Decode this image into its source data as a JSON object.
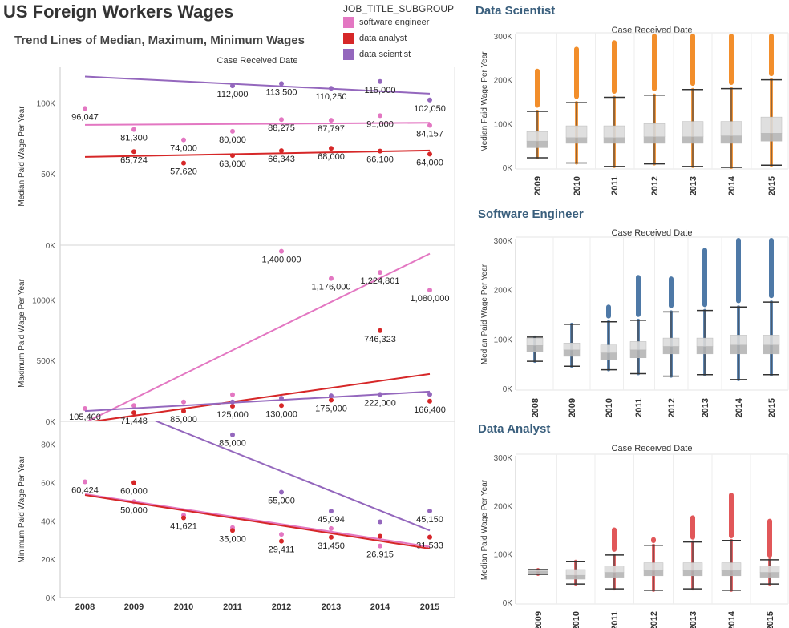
{
  "title": "US Foreign Workers Wages",
  "subtitle": "Trend Lines of Median, Maximum, Minimum Wages",
  "legend": {
    "title": "JOB_TITLE_SUBGROUP",
    "items": [
      {
        "label": "software engineer",
        "color": "#e377c2"
      },
      {
        "label": "data analyst",
        "color": "#d62728"
      },
      {
        "label": "data scientist",
        "color": "#9467bd"
      }
    ]
  },
  "chart_data": [
    {
      "type": "scatter",
      "title": "Trend Lines of Median, Maximum, Minimum Wages",
      "xlabel": "Case Received Date",
      "ylabel": "Median Paid Wage Per Year",
      "x": [
        2008,
        2009,
        2010,
        2011,
        2012,
        2013,
        2014,
        2015
      ],
      "xticks": [
        "2008",
        "2009",
        "2010",
        "2011",
        "2012",
        "2013",
        "2014",
        "2015"
      ],
      "ylim": [
        0,
        125000
      ],
      "yticks": [
        {
          "v": 0,
          "label": "0K"
        },
        {
          "v": 50000,
          "label": "50K"
        },
        {
          "v": 100000,
          "label": "100K"
        }
      ],
      "series": [
        {
          "name": "software engineer",
          "color": "#e377c2",
          "x": [
            2008,
            2009,
            2010,
            2011,
            2012,
            2013,
            2014,
            2015
          ],
          "y": [
            96047,
            81300,
            74000,
            80000,
            88275,
            87797,
            91000,
            84157
          ],
          "labels": [
            "96,047",
            "81,300",
            "74,000",
            "80,000",
            "88,275",
            "87,797",
            "91,000",
            "84,157"
          ],
          "trend": [
            84500,
            86000
          ]
        },
        {
          "name": "data analyst",
          "color": "#d62728",
          "x": [
            2009,
            2010,
            2011,
            2012,
            2013,
            2014,
            2015
          ],
          "y": [
            65724,
            57620,
            63000,
            66343,
            68000,
            66100,
            64000
          ],
          "labels": [
            "65,724",
            "57,620",
            "63,000",
            "66,343",
            "68,000",
            "66,100",
            "64,000"
          ],
          "trend": [
            62000,
            66500
          ]
        },
        {
          "name": "data scientist",
          "color": "#9467bd",
          "x": [
            2011,
            2012,
            2013,
            2014,
            2015
          ],
          "y": [
            112000,
            113500,
            110250,
            115000,
            102050
          ],
          "labels": [
            "112,000",
            "113,500",
            "110,250",
            "115,000",
            "102,050"
          ],
          "trend": [
            118500,
            106500
          ]
        }
      ]
    },
    {
      "type": "scatter",
      "ylabel": "Maximum Paid Wage Per Year",
      "x": [
        2008,
        2009,
        2010,
        2011,
        2012,
        2013,
        2014,
        2015
      ],
      "ylim": [
        0,
        1450000
      ],
      "yticks": [
        {
          "v": 0,
          "label": "0K"
        },
        {
          "v": 500000,
          "label": "500K"
        },
        {
          "v": 1000000,
          "label": "1000K"
        }
      ],
      "series": [
        {
          "name": "software engineer",
          "color": "#e377c2",
          "x": [
            2008,
            2009,
            2010,
            2011,
            2012,
            2013,
            2014,
            2015
          ],
          "y": [
            105400,
            130000,
            160000,
            220000,
            1400000,
            1176000,
            1224801,
            1080000
          ],
          "labels": [
            "105,400",
            "",
            "",
            "",
            "1,400,000",
            "1,176,000",
            "1,224,801",
            "1,080,000"
          ],
          "trend": [
            -10000,
            1380000
          ]
        },
        {
          "name": "data analyst",
          "color": "#d62728",
          "x": [
            2009,
            2010,
            2011,
            2012,
            2013,
            2014,
            2015
          ],
          "y": [
            71448,
            85000,
            125000,
            130000,
            175000,
            746323,
            166400
          ],
          "labels": [
            "71,448",
            "85,000",
            "125,000",
            "130,000",
            "175,000",
            "746,323",
            "166,400"
          ],
          "trend": [
            -10000,
            390000
          ]
        },
        {
          "name": "data scientist",
          "color": "#9467bd",
          "x": [
            2011,
            2012,
            2013,
            2014,
            2015
          ],
          "y": [
            160000,
            190000,
            210000,
            222000,
            222000
          ],
          "labels": [
            "",
            "",
            "",
            "222,000",
            ""
          ],
          "trend": [
            85000,
            245000
          ]
        }
      ]
    },
    {
      "type": "scatter",
      "ylabel": "Minimum Paid Wage Per Year",
      "x": [
        2008,
        2009,
        2010,
        2011,
        2012,
        2013,
        2014,
        2015
      ],
      "ylim": [
        0,
        92000
      ],
      "yticks": [
        {
          "v": 0,
          "label": "0K"
        },
        {
          "v": 20000,
          "label": "20K"
        },
        {
          "v": 40000,
          "label": "40K"
        },
        {
          "v": 60000,
          "label": "60K"
        },
        {
          "v": 80000,
          "label": "80K"
        }
      ],
      "series": [
        {
          "name": "software engineer",
          "color": "#e377c2",
          "x": [
            2008,
            2009,
            2010,
            2011,
            2012,
            2013,
            2014,
            2015
          ],
          "y": [
            60424,
            50000,
            43000,
            36500,
            33000,
            36000,
            26915,
            31533
          ],
          "labels": [
            "60,424",
            "50,000",
            "",
            "",
            "",
            "",
            "26,915",
            "31,533"
          ],
          "trend": [
            54000,
            26500
          ]
        },
        {
          "name": "data analyst",
          "color": "#d62728",
          "x": [
            2009,
            2010,
            2011,
            2012,
            2013,
            2014,
            2015
          ],
          "y": [
            60000,
            41621,
            35000,
            29411,
            31450,
            32000,
            31533
          ],
          "labels": [
            "60,000",
            "41,621",
            "35,000",
            "29,411",
            "31,450",
            "",
            ""
          ],
          "trend": [
            53500,
            25500
          ]
        },
        {
          "name": "data scientist",
          "color": "#9467bd",
          "x": [
            2011,
            2012,
            2013,
            2014,
            2015
          ],
          "y": [
            85000,
            55000,
            45094,
            39500,
            45150
          ],
          "labels": [
            "85,000",
            "55,000",
            "45,094",
            "",
            "45,150"
          ],
          "trend": [
            107000,
            35000
          ]
        }
      ]
    },
    {
      "type": "box",
      "title": "Data Scientist",
      "xlabel": "Case Received Date",
      "ylabel": "Median Paid Wage Per Year",
      "color": "#f28e2b",
      "ylim": [
        0,
        300000
      ],
      "yticks": [
        {
          "v": 0,
          "label": "0K"
        },
        {
          "v": 100000,
          "label": "100K"
        },
        {
          "v": 200000,
          "label": "200K"
        },
        {
          "v": 300000,
          "label": "300K"
        }
      ],
      "categories": [
        "2009",
        "2010",
        "2011",
        "2012",
        "2013",
        "2014",
        "2015"
      ],
      "boxes": [
        {
          "wlo": 22000,
          "q1": 45000,
          "med": 60000,
          "q3": 82000,
          "whi": 128000,
          "out_from": 140000,
          "out_to": 220000
        },
        {
          "wlo": 10000,
          "q1": 55000,
          "med": 68000,
          "q3": 95000,
          "whi": 148000,
          "out_from": 160000,
          "out_to": 270000
        },
        {
          "wlo": 2000,
          "q1": 55000,
          "med": 68000,
          "q3": 95000,
          "whi": 160000,
          "out_from": 172000,
          "out_to": 285000
        },
        {
          "wlo": 8000,
          "q1": 55000,
          "med": 70000,
          "q3": 100000,
          "whi": 165000,
          "out_from": 178000,
          "out_to": 300000
        },
        {
          "wlo": 2000,
          "q1": 55000,
          "med": 70000,
          "q3": 105000,
          "whi": 178000,
          "out_from": 190000,
          "out_to": 300000
        },
        {
          "wlo": 0,
          "q1": 55000,
          "med": 72000,
          "q3": 105000,
          "whi": 180000,
          "out_from": 192000,
          "out_to": 300000
        },
        {
          "wlo": 5000,
          "q1": 60000,
          "med": 78000,
          "q3": 115000,
          "whi": 200000,
          "out_from": 212000,
          "out_to": 300000
        }
      ]
    },
    {
      "type": "box",
      "title": "Software Engineer",
      "xlabel": "Case Received Date",
      "ylabel": "Median Paid Wage Per Year",
      "color": "#4e79a7",
      "ylim": [
        0,
        300000
      ],
      "yticks": [
        {
          "v": 0,
          "label": "0K"
        },
        {
          "v": 100000,
          "label": "100K"
        },
        {
          "v": 200000,
          "label": "200K"
        },
        {
          "v": 300000,
          "label": "300K"
        }
      ],
      "categories": [
        "2008",
        "2009",
        "2010",
        "2011",
        "2012",
        "2013",
        "2014",
        "2015"
      ],
      "boxes": [
        {
          "wlo": 55000,
          "q1": 75000,
          "med": 87000,
          "q3": 102000,
          "whi": 104000,
          "out_from": null,
          "out_to": null
        },
        {
          "wlo": 45000,
          "q1": 65000,
          "med": 78000,
          "q3": 92000,
          "whi": 130000,
          "out_from": null,
          "out_to": null
        },
        {
          "wlo": 38000,
          "q1": 58000,
          "med": 72000,
          "q3": 88000,
          "whi": 135000,
          "out_from": 145000,
          "out_to": 165000
        },
        {
          "wlo": 30000,
          "q1": 62000,
          "med": 78000,
          "q3": 95000,
          "whi": 138000,
          "out_from": 148000,
          "out_to": 225000
        },
        {
          "wlo": 25000,
          "q1": 70000,
          "med": 85000,
          "q3": 102000,
          "whi": 155000,
          "out_from": 166000,
          "out_to": 222000
        },
        {
          "wlo": 28000,
          "q1": 70000,
          "med": 85000,
          "q3": 102000,
          "whi": 158000,
          "out_from": 168000,
          "out_to": 280000
        },
        {
          "wlo": 18000,
          "q1": 70000,
          "med": 88000,
          "q3": 108000,
          "whi": 165000,
          "out_from": 176000,
          "out_to": 300000
        },
        {
          "wlo": 28000,
          "q1": 70000,
          "med": 88000,
          "q3": 108000,
          "whi": 175000,
          "out_from": 186000,
          "out_to": 300000
        }
      ]
    },
    {
      "type": "box",
      "title": "Data Analyst",
      "xlabel": "Case Received Date",
      "ylabel": "Median Paid Wage Per Year",
      "color": "#e15759",
      "ylim": [
        0,
        300000
      ],
      "yticks": [
        {
          "v": 0,
          "label": "0K"
        },
        {
          "v": 100000,
          "label": "100K"
        },
        {
          "v": 200000,
          "label": "200K"
        },
        {
          "v": 300000,
          "label": "300K"
        }
      ],
      "categories": [
        "2009",
        "2010",
        "2011",
        "2012",
        "2013",
        "2014",
        "2015"
      ],
      "boxes": [
        {
          "wlo": 58000,
          "q1": 60000,
          "med": 64000,
          "q3": 66000,
          "whi": 68000,
          "out_from": null,
          "out_to": null
        },
        {
          "wlo": 38000,
          "q1": 48000,
          "med": 56000,
          "q3": 68000,
          "whi": 85000,
          "out_from": null,
          "out_to": null
        },
        {
          "wlo": 28000,
          "q1": 52000,
          "med": 62000,
          "q3": 75000,
          "whi": 98000,
          "out_from": 108000,
          "out_to": 150000
        },
        {
          "wlo": 25000,
          "q1": 55000,
          "med": 66000,
          "q3": 82000,
          "whi": 118000,
          "out_from": 126000,
          "out_to": 130000
        },
        {
          "wlo": 28000,
          "q1": 55000,
          "med": 66000,
          "q3": 82000,
          "whi": 125000,
          "out_from": 133000,
          "out_to": 175000
        },
        {
          "wlo": 25000,
          "q1": 55000,
          "med": 66000,
          "q3": 82000,
          "whi": 128000,
          "out_from": 136000,
          "out_to": 222000
        },
        {
          "wlo": 38000,
          "q1": 52000,
          "med": 62000,
          "q3": 75000,
          "whi": 88000,
          "out_from": 96000,
          "out_to": 168000
        }
      ]
    }
  ]
}
